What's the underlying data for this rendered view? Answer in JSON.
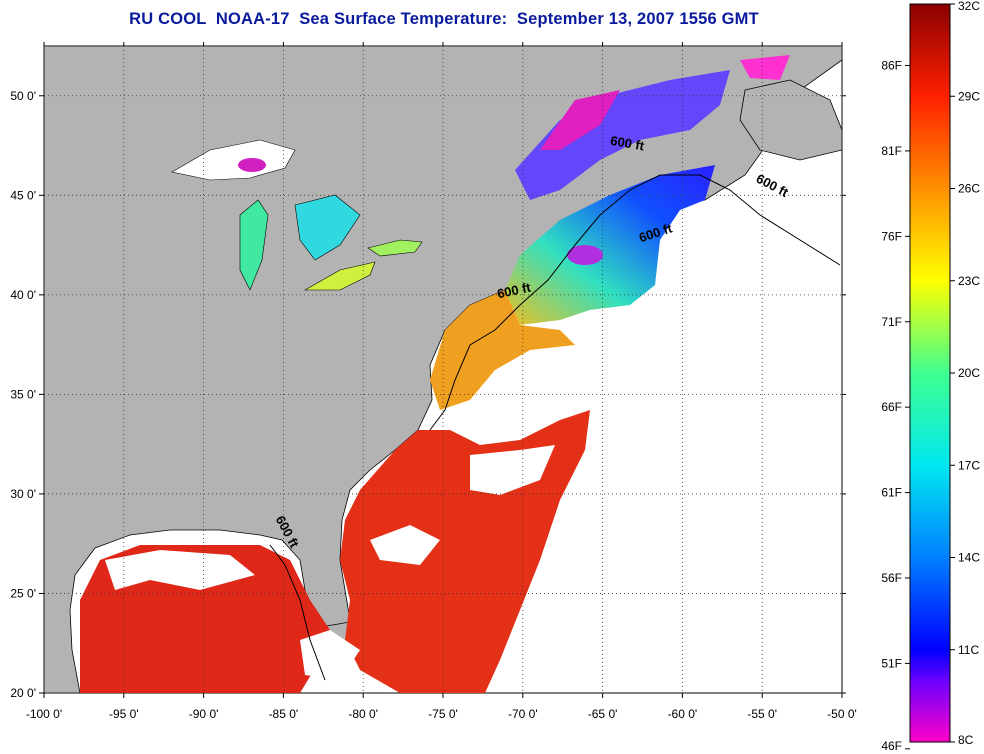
{
  "title": "RU COOL  NOAA-17  Sea Surface Temperature:  September 13, 2007 1556 GMT",
  "map": {
    "lon_range": [
      -100,
      -50
    ],
    "lat_range": [
      20,
      52.5
    ],
    "lon_ticks": [
      {
        "value": -100,
        "label": "-100 0'"
      },
      {
        "value": -95,
        "label": "-95 0'"
      },
      {
        "value": -90,
        "label": "-90 0'"
      },
      {
        "value": -85,
        "label": "-85 0'"
      },
      {
        "value": -80,
        "label": "-80 0'"
      },
      {
        "value": -75,
        "label": "-75 0'"
      },
      {
        "value": -70,
        "label": "-70 0'"
      },
      {
        "value": -65,
        "label": "-65 0'"
      },
      {
        "value": -60,
        "label": "-60 0'"
      },
      {
        "value": -55,
        "label": "-55 0'"
      },
      {
        "value": -50,
        "label": "-50 0'"
      }
    ],
    "lat_ticks": [
      {
        "value": 20,
        "label": "20 0'"
      },
      {
        "value": 25,
        "label": "25 0'"
      },
      {
        "value": 30,
        "label": "30 0'"
      },
      {
        "value": 35,
        "label": "35 0'"
      },
      {
        "value": 40,
        "label": "40 0'"
      },
      {
        "value": 45,
        "label": "45 0'"
      },
      {
        "value": 50,
        "label": "50 0'"
      }
    ],
    "grid": "dotted",
    "contour_labels": [
      {
        "text": "600 ft",
        "lon": -63.5,
        "lat": 47.4,
        "angle": 10
      },
      {
        "text": "600 ft",
        "lon": -54.5,
        "lat": 45.3,
        "angle": 28
      },
      {
        "text": "600 ft",
        "lon": -61.6,
        "lat": 42.9,
        "angle": -18
      },
      {
        "text": "600 ft",
        "lon": -70.5,
        "lat": 40.0,
        "angle": -12
      },
      {
        "text": "600 ft",
        "lon": -85.0,
        "lat": 28.0,
        "angle": 62
      }
    ],
    "colors": {
      "land": "#b3b3b3",
      "cloud": "#ffffff",
      "ocean_warm": "#e02010"
    }
  },
  "colorbar": {
    "celsius_range": [
      8,
      32
    ],
    "celsius_labels": [
      "32C",
      "29C",
      "26C",
      "23C",
      "20C",
      "17C",
      "14C",
      "11C",
      "8C"
    ],
    "fahrenheit_labels": [
      {
        "value": 86,
        "label": "86F"
      },
      {
        "value": 81,
        "label": "81F"
      },
      {
        "value": 76,
        "label": "76F"
      },
      {
        "value": 71,
        "label": "71F"
      },
      {
        "value": 66,
        "label": "66F"
      },
      {
        "value": 61,
        "label": "61F"
      },
      {
        "value": 56,
        "label": "56F"
      },
      {
        "value": 51,
        "label": "51F"
      },
      {
        "value": 46,
        "label": "46F"
      }
    ],
    "stops": [
      {
        "c": 8,
        "color": "#ff00c8"
      },
      {
        "c": 10,
        "color": "#6a00ff"
      },
      {
        "c": 11,
        "color": "#0000ff"
      },
      {
        "c": 14,
        "color": "#0080ff"
      },
      {
        "c": 17,
        "color": "#00e8f0"
      },
      {
        "c": 20,
        "color": "#40ff90"
      },
      {
        "c": 23,
        "color": "#ffff00"
      },
      {
        "c": 26,
        "color": "#ff9000"
      },
      {
        "c": 29,
        "color": "#ff2000"
      },
      {
        "c": 32,
        "color": "#8a0000"
      }
    ]
  }
}
